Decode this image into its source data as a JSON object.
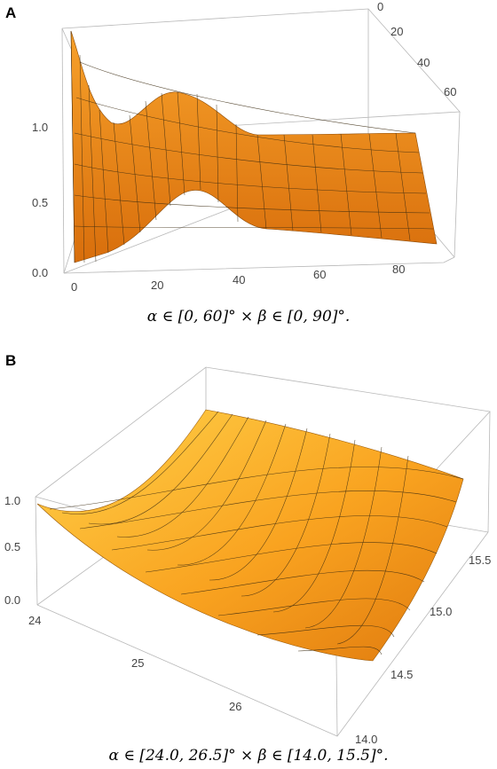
{
  "chart_data": [
    {
      "panel": "A",
      "type": "surface",
      "x_ticks": [
        "0",
        "20",
        "40",
        "60",
        "80"
      ],
      "y_ticks": [
        "0",
        "20",
        "40",
        "60"
      ],
      "z_ticks": [
        "0.0",
        "0.5",
        "1.0"
      ],
      "xlim": [
        0,
        90
      ],
      "ylim": [
        0,
        60
      ],
      "zlim": [
        0,
        1.2
      ],
      "caption": "α ∈ [0, 60]°  × β ∈ [0, 90]°."
    },
    {
      "panel": "B",
      "type": "surface",
      "x_ticks": [
        "24",
        "25",
        "26"
      ],
      "y_ticks": [
        "14.0",
        "14.5",
        "15.0",
        "15.5"
      ],
      "z_ticks": [
        "0.0",
        "0.5",
        "1.0"
      ],
      "xlim": [
        24.0,
        26.5
      ],
      "ylim": [
        14.0,
        15.5
      ],
      "zlim": [
        0,
        1.1
      ],
      "caption": "α ∈ [24.0, 26.5]°  × β ∈ [14.0, 15.5]°."
    }
  ],
  "colors": {
    "surface_light": "#ffc83a",
    "surface_dark": "#d06a08",
    "mesh": "#3a2a10",
    "box": "#b8b8b8"
  }
}
